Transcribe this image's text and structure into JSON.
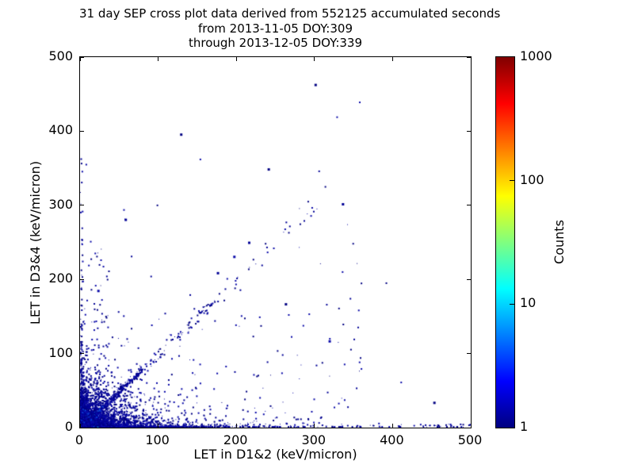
{
  "title": {
    "line1": "31 day SEP cross plot data derived from 552125 accumulated seconds",
    "line2": "from 2013-11-05 DOY:309",
    "line3": "through 2013-12-05 DOY:339"
  },
  "chart_data": {
    "type": "scatter",
    "title": "31 day SEP cross plot data derived from 552125 accumulated seconds\nfrom 2013-11-05 DOY:309\nthrough 2013-12-05 DOY:339",
    "xlabel": "LET in D1&2 (keV/micron)",
    "ylabel": "LET in D3&4 (keV/micron)",
    "xlim": [
      0,
      500
    ],
    "ylim": [
      0,
      500
    ],
    "xticks": [
      0,
      100,
      200,
      300,
      400,
      500
    ],
    "yticks": [
      0,
      100,
      200,
      300,
      400,
      500
    ],
    "grid": false,
    "background": "#ffffff",
    "axis_color": "#000000",
    "colorbar": {
      "label": "Counts",
      "scale": "log",
      "min": 1,
      "max": 1000,
      "ticks": [
        1,
        10,
        100,
        1000
      ],
      "colormap": "jet",
      "stops": [
        [
          "0%",
          "#000080"
        ],
        [
          "12.5%",
          "#0000ff"
        ],
        [
          "37.5%",
          "#00ffff"
        ],
        [
          "62.5%",
          "#ffff00"
        ],
        [
          "87.5%",
          "#ff0000"
        ],
        [
          "100%",
          "#800000"
        ]
      ]
    },
    "seed": 309339,
    "palettes": {
      "navy": [
        "#000082",
        "#000096",
        "#0a0aa8"
      ]
    },
    "heat_bands": [
      {
        "limit": 2.2,
        "colors": [
          "#cc1100",
          "#e84400",
          "#ff6a00"
        ]
      },
      {
        "limit": 4.2,
        "colors": [
          "#ff9500",
          "#ffc400"
        ]
      },
      {
        "limit": 6.5,
        "colors": [
          "#ffe800",
          "#d8ee00"
        ]
      },
      {
        "limit": 9.5,
        "colors": [
          "#7fd400",
          "#2ec437"
        ]
      },
      {
        "limit": 14,
        "colors": [
          "#00c993",
          "#00c4cf"
        ]
      },
      {
        "limit": 20,
        "colors": [
          "#00a6f0",
          "#0077ff"
        ]
      },
      {
        "limit": 30,
        "colors": [
          "#0040e8",
          "#0026c4"
        ]
      },
      {
        "limit": 999999,
        "colors": [
          "#000088",
          "#0000a4"
        ]
      }
    ],
    "halo_bands": [
      {
        "limit": 12,
        "colors": [
          "#00a8e0",
          "#0f68f0",
          "#0d3fd6"
        ]
      },
      {
        "limit": 24,
        "colors": [
          "#0d3fd6",
          "#0a28b4",
          "#0000a0"
        ]
      },
      {
        "limit": 999999,
        "colors": [
          "#000089",
          "#00009e"
        ]
      }
    ],
    "strip_bands": [
      {
        "limit": 3,
        "colors": [
          "#ff7700",
          "#ffaa00"
        ]
      },
      {
        "limit": 7,
        "colors": [
          "#ffe000",
          "#c8e800"
        ]
      },
      {
        "limit": 12,
        "colors": [
          "#7fd400",
          "#35c43c"
        ]
      },
      {
        "limit": 18,
        "colors": [
          "#00c96a",
          "#00c9a8"
        ]
      },
      {
        "limit": 26,
        "colors": [
          "#00bcd4"
        ]
      },
      {
        "limit": 999999,
        "colors": [
          "#0077ee"
        ]
      }
    ],
    "streak_bands": [
      {
        "limit": 8,
        "colors": [
          "#00c978"
        ]
      },
      {
        "limit": 16,
        "colors": [
          "#00b4dc"
        ]
      },
      {
        "limit": 999999,
        "colors": [
          "#0d6ef0"
        ]
      }
    ],
    "clusters": [
      {
        "name": "origin-core",
        "type": "exp2d",
        "n": 2600,
        "sx": 5,
        "sy": 4,
        "palette": "heat"
      },
      {
        "name": "origin-halo",
        "type": "exp2d",
        "n": 1800,
        "sx": 21,
        "sy": 17,
        "palette": "halo"
      },
      {
        "name": "bottom-green-strip",
        "type": "strip-x",
        "n": 130,
        "scale": 14,
        "ymax": 1.8,
        "palette": "strip"
      },
      {
        "name": "left-edge-strip",
        "type": "strip-y",
        "n": 70,
        "scale": 12,
        "xmax": 1.6,
        "palette": "halo"
      },
      {
        "name": "diagonal-streak",
        "type": "diag",
        "n": 55,
        "tmin": 0,
        "tmax": 26,
        "pow": 1.4,
        "slope": 0.95,
        "spread": 1.2,
        "palette": "streak"
      },
      {
        "name": "diagonal-band",
        "type": "diag",
        "n": 430,
        "tmin": 0,
        "tmax": 80,
        "pow": 1.5,
        "slope": 1.0,
        "spread": 2.2,
        "palette": "bluish"
      },
      {
        "name": "diagonal-mid",
        "type": "diag",
        "n": 80,
        "tmin": 80,
        "tmax": 170,
        "pow": 1,
        "slope": 1.0,
        "spread": 4,
        "palette": "navy"
      },
      {
        "name": "diagonal-far",
        "type": "diag",
        "n": 30,
        "tmin": 170,
        "tmax": 310,
        "pow": 1,
        "slope": 1.0,
        "spread": 7,
        "palette": "navy"
      },
      {
        "name": "bottom-band",
        "type": "band-x",
        "n": 950,
        "xscale": 70,
        "yscale": 3.2,
        "palette": "bluish2"
      },
      {
        "name": "bottom-sparse",
        "type": "uniform",
        "n": 140,
        "x": [
          0,
          500
        ],
        "y": [
          0,
          5.5
        ],
        "palette": "navy"
      },
      {
        "name": "left-band",
        "type": "band-y",
        "n": 330,
        "yscale": 42,
        "xscale": 1.7,
        "palette": "navy"
      },
      {
        "name": "left-column-high",
        "type": "uniform",
        "n": 26,
        "x": [
          0,
          2.5
        ],
        "y": [
          120,
          365
        ],
        "palette": "navy"
      },
      {
        "name": "left-mid-sparse",
        "type": "uniform",
        "n": 48,
        "x": [
          3,
          36
        ],
        "y": [
          40,
          255
        ],
        "palette": "navy"
      },
      {
        "name": "lower-left-scatter",
        "type": "exp2d",
        "n": 520,
        "sx": 58,
        "sy": 27,
        "palette": "navy"
      },
      {
        "name": "below-diagonal-sparse",
        "type": "tri",
        "n": 130,
        "xmin": 20,
        "xmax": 360,
        "palette": "navy"
      },
      {
        "name": "above-diagonal-sparse",
        "type": "abovediag",
        "n": 20,
        "xmin": 5,
        "xmax": 75,
        "ymax": 280,
        "palette": "navy"
      }
    ],
    "outliers": [
      [
        300,
        464
      ],
      [
        357,
        440
      ],
      [
        328,
        420
      ],
      [
        128,
        397
      ],
      [
        153,
        363
      ],
      [
        7,
        356
      ],
      [
        240,
        350
      ],
      [
        305,
        347
      ],
      [
        313,
        326
      ],
      [
        335,
        303
      ],
      [
        291,
        306
      ],
      [
        98,
        301
      ],
      [
        57,
        282
      ],
      [
        286,
        280
      ],
      [
        263,
        278
      ],
      [
        215,
        251
      ],
      [
        247,
        243
      ],
      [
        65,
        232
      ],
      [
        196,
        232
      ],
      [
        232,
        220
      ],
      [
        36,
        212
      ],
      [
        175,
        210
      ],
      [
        90,
        205
      ],
      [
        391,
        196
      ],
      [
        22,
        186
      ],
      [
        140,
        180
      ],
      [
        345,
        175
      ],
      [
        262,
        168
      ],
      [
        108,
        155
      ],
      [
        229,
        150
      ],
      [
        318,
        118
      ],
      [
        358,
        95
      ],
      [
        410,
        62
      ],
      [
        452,
        35
      ]
    ]
  }
}
